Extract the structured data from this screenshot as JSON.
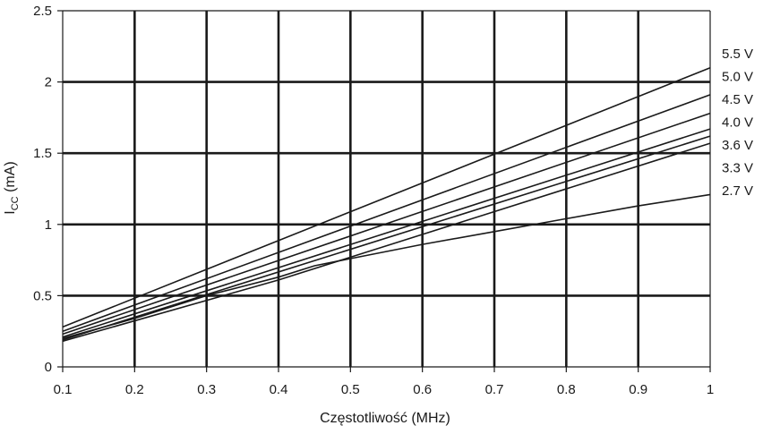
{
  "chart_data": {
    "type": "line",
    "title": "",
    "xlabel": "Częstotliwość (MHz)",
    "ylabel": {
      "main": "I",
      "sub": "CC",
      "rest": " (mA)"
    },
    "xlim": [
      0.1,
      1.0
    ],
    "ylim": [
      0,
      2.5
    ],
    "grid": true,
    "x_ticks": [
      "0.1",
      "0.2",
      "0.3",
      "0.4",
      "0.5",
      "0.6",
      "0.7",
      "0.8",
      "0.9",
      "1"
    ],
    "y_ticks": [
      "0",
      "0.5",
      "1",
      "1.5",
      "2",
      "2.5"
    ],
    "series": [
      {
        "name": "5.5 V",
        "x": [
          0.1,
          1.0
        ],
        "y": [
          0.28,
          2.1
        ]
      },
      {
        "name": "5.0 V",
        "x": [
          0.1,
          1.0
        ],
        "y": [
          0.25,
          1.91
        ]
      },
      {
        "name": "4.5 V",
        "x": [
          0.1,
          1.0
        ],
        "y": [
          0.23,
          1.78
        ]
      },
      {
        "name": "4.0 V",
        "x": [
          0.1,
          1.0
        ],
        "y": [
          0.21,
          1.67
        ]
      },
      {
        "name": "3.6 V",
        "x": [
          0.1,
          1.0
        ],
        "y": [
          0.19,
          1.62
        ]
      },
      {
        "name": "3.3 V",
        "x": [
          0.1,
          0.4,
          1.0
        ],
        "y": [
          0.18,
          0.61,
          1.57
        ]
      },
      {
        "name": "2.7 V",
        "x": [
          0.1,
          0.2,
          0.3,
          0.4,
          0.45,
          0.5,
          0.6,
          0.7,
          0.8,
          0.9,
          1.0
        ],
        "y": [
          0.2,
          0.34,
          0.5,
          0.63,
          0.71,
          0.76,
          0.86,
          0.95,
          1.04,
          1.13,
          1.21
        ]
      }
    ]
  }
}
